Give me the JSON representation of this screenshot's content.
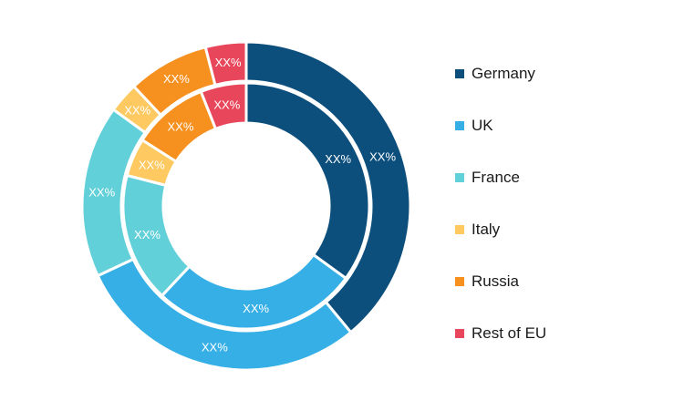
{
  "chart_data": {
    "type": "pie",
    "subtype": "nested-donut",
    "categories": [
      "Germany",
      "UK",
      "France",
      "Italy",
      "Russia",
      "Rest of EU"
    ],
    "colors": [
      "#0d4f7c",
      "#36afe6",
      "#62d0d9",
      "#fdc960",
      "#f6901e",
      "#e8475b"
    ],
    "series": [
      {
        "ring": "outer",
        "values": [
          39,
          29,
          17,
          3,
          8,
          4
        ],
        "labels": [
          "XX%",
          "XX%",
          "XX%",
          "XX%",
          "XX%",
          "XX%"
        ]
      },
      {
        "ring": "inner",
        "values": [
          35,
          27,
          17,
          5,
          10,
          6
        ],
        "labels": [
          "XX%",
          "XX%",
          "XX%",
          "XX%",
          "XX%",
          "XX%"
        ]
      }
    ],
    "legend_position": "right"
  }
}
